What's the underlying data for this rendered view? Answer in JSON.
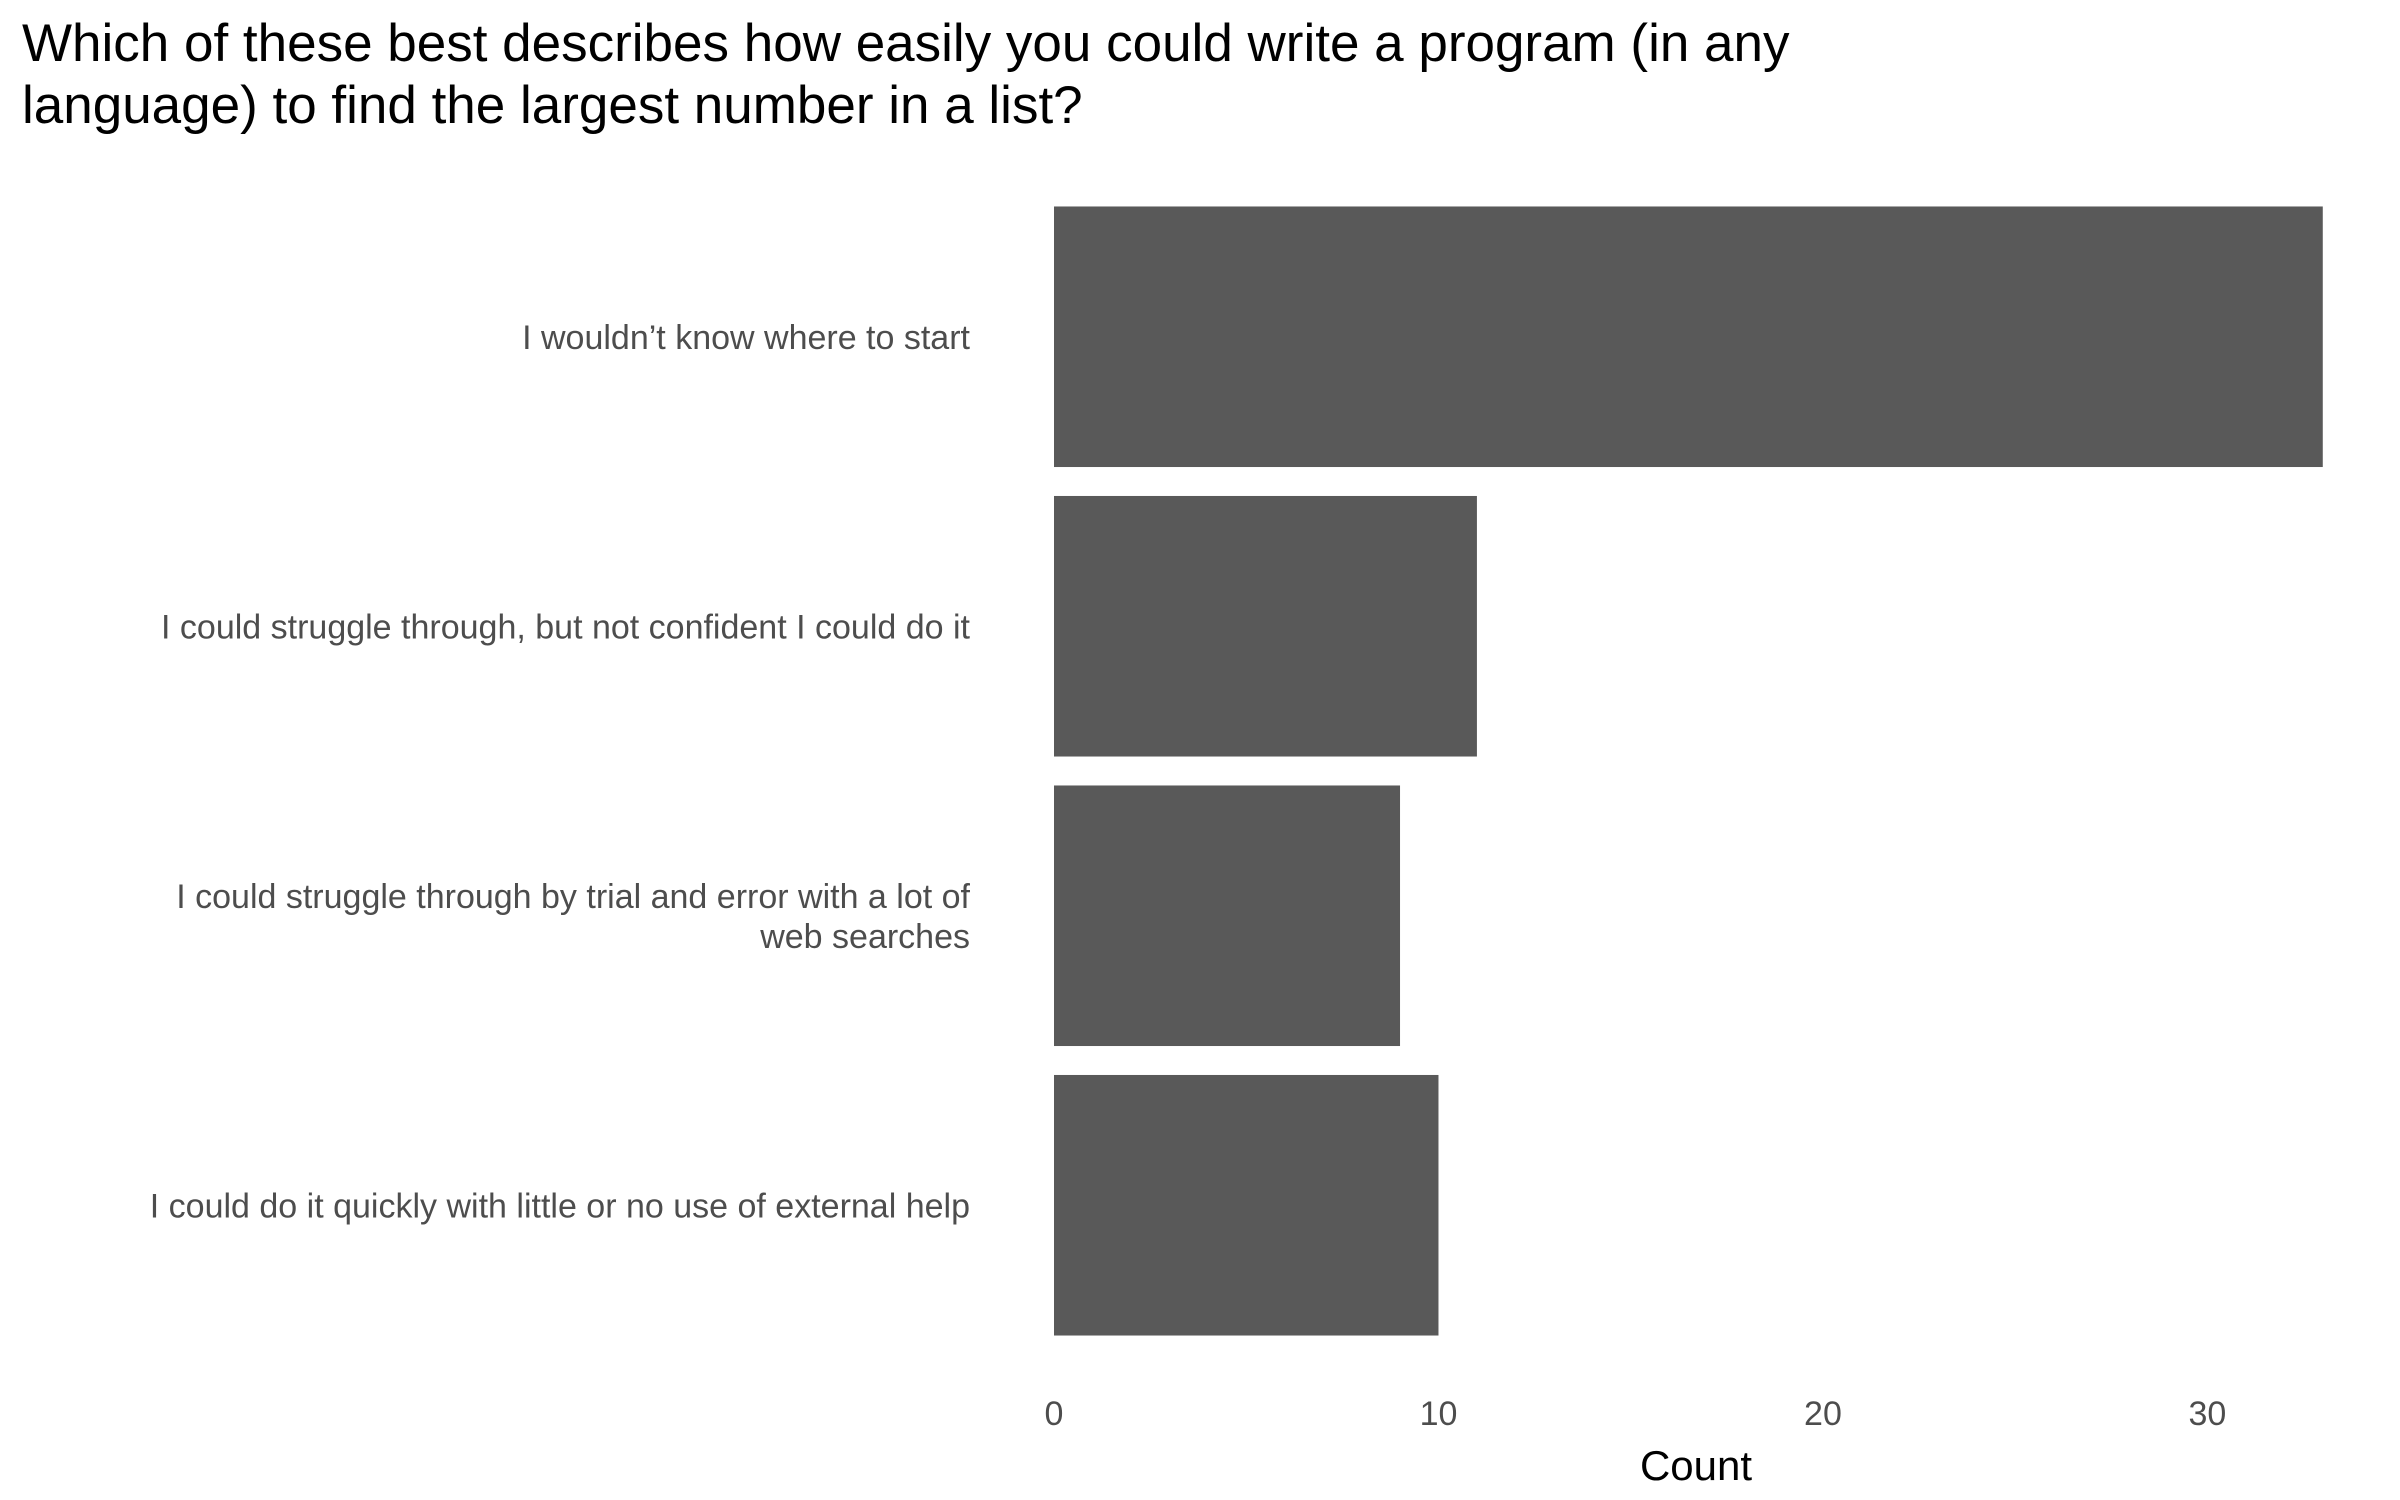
{
  "chart_data": {
    "type": "bar",
    "orientation": "horizontal",
    "title": [
      "Which of these best describes how easily you could write a program (in any",
      "language) to find the largest number in a list?"
    ],
    "xlabel": "Count",
    "ylabel": "",
    "xlim": [
      0,
      33.5
    ],
    "x_ticks": [
      0,
      10,
      20,
      30
    ],
    "grid": false,
    "bar_color": "#595959",
    "categories": [
      {
        "label_lines": [
          "I wouldn’t know where to start"
        ],
        "value": 33
      },
      {
        "label_lines": [
          "I could struggle through, but not confident I could do it"
        ],
        "value": 11
      },
      {
        "label_lines": [
          "I could struggle through by trial and error with a lot of",
          "web searches"
        ],
        "value": 9
      },
      {
        "label_lines": [
          "I could do it quickly with little or no use of external help"
        ],
        "value": 10
      }
    ]
  }
}
